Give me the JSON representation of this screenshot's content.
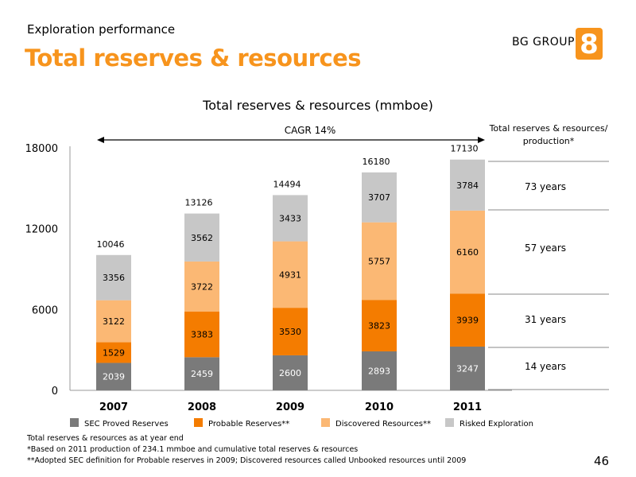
{
  "header": {
    "section": "Exploration performance",
    "title": "Total reserves & resources",
    "brand": "BG GROUP",
    "logo_glyph": "8"
  },
  "colors": {
    "accent": "#f7941d",
    "sec_proved": "#7a7a7a",
    "probable": "#f47c00",
    "discovered": "#fbb874",
    "risked": "#c7c7c7"
  },
  "chart_data": {
    "type": "bar",
    "stacked": true,
    "title": "Total reserves & resources (mmboe)",
    "categories": [
      "2007",
      "2008",
      "2009",
      "2010",
      "2011"
    ],
    "series": [
      {
        "name": "SEC Proved Reserves",
        "values": [
          2039,
          2459,
          2600,
          2893,
          3247
        ]
      },
      {
        "name": "Probable Reserves**",
        "values": [
          1529,
          3383,
          3530,
          3823,
          3939
        ]
      },
      {
        "name": "Discovered Resources**",
        "values": [
          3122,
          3722,
          4931,
          5757,
          6160
        ]
      },
      {
        "name": "Risked Exploration",
        "values": [
          3356,
          3562,
          3433,
          3707,
          3784
        ]
      }
    ],
    "totals": [
      10046,
      13126,
      14494,
      16180,
      17130
    ],
    "ylim": [
      0,
      18000
    ],
    "yticks": [
      0,
      6000,
      12000,
      18000
    ],
    "cagr_label": "CAGR 14%",
    "legend_position": "bottom",
    "side_panel": {
      "title": "Total reserves & resources/ production*",
      "items": [
        "73 years",
        "57 years",
        "31 years",
        "14 years"
      ]
    }
  },
  "footnotes": [
    "Total reserves & resources as at year end",
    "*Based on 2011 production of 234.1 mmboe and cumulative total reserves & resources",
    "**Adopted SEC definition for Probable reserves in 2009; Discovered resources called Unbooked resources until 2009"
  ],
  "page_number": "46"
}
